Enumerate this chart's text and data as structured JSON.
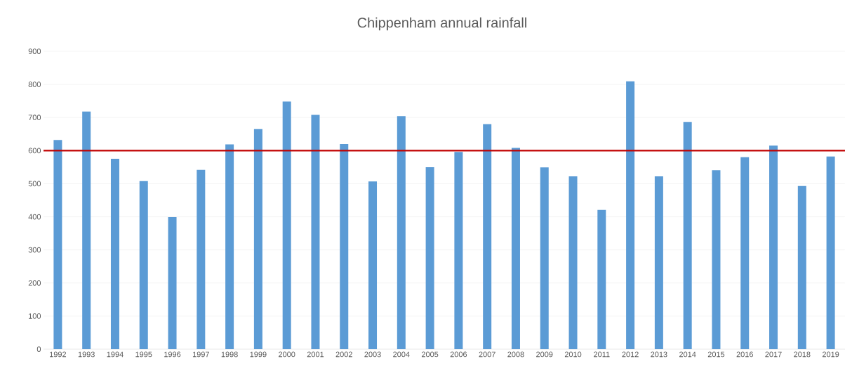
{
  "chart_data": {
    "type": "bar",
    "title": "Chippenham annual rainfall",
    "categories": [
      "1992",
      "1993",
      "1994",
      "1995",
      "1996",
      "1997",
      "1998",
      "1999",
      "2000",
      "2001",
      "2002",
      "2003",
      "2004",
      "2005",
      "2006",
      "2007",
      "2008",
      "2009",
      "2010",
      "2011",
      "2012",
      "2013",
      "2014",
      "2015",
      "2016",
      "2017",
      "2018",
      "2019"
    ],
    "values": [
      632,
      718,
      575,
      508,
      399,
      542,
      619,
      665,
      748,
      708,
      620,
      507,
      704,
      550,
      596,
      680,
      608,
      549,
      522,
      421,
      809,
      522,
      686,
      541,
      580,
      615,
      493,
      582
    ],
    "color": "#5b9bd5",
    "ylim": [
      0,
      900
    ],
    "yticks": [
      0,
      100,
      200,
      300,
      400,
      500,
      600,
      700,
      800,
      900
    ],
    "grid": "y",
    "ref_lines": [
      {
        "axis": "y",
        "value": 600,
        "color": "#c00000"
      }
    ]
  }
}
